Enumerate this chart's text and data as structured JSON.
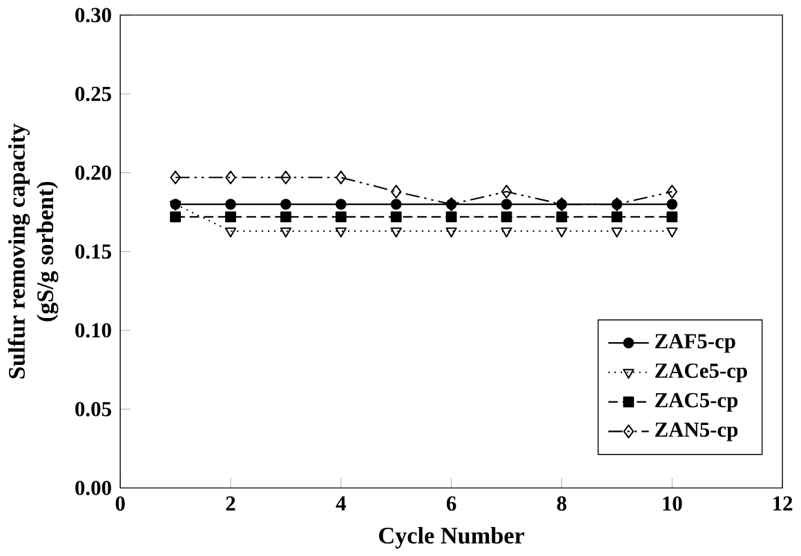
{
  "chart_data": {
    "type": "line",
    "xlabel": "Cycle Number",
    "ylabel": "Sulfur removing capacity\n(gS/g sorbent)",
    "x": [
      1,
      2,
      3,
      4,
      5,
      6,
      7,
      8,
      9,
      10
    ],
    "series": [
      {
        "name": "ZAF5-cp",
        "color": "#000000",
        "marker": "circle",
        "line_style": "solid",
        "values": [
          0.18,
          0.18,
          0.18,
          0.18,
          0.18,
          0.18,
          0.18,
          0.18,
          0.18,
          0.18
        ]
      },
      {
        "name": "ZACe5-cp",
        "color": "#000000",
        "marker": "triangle",
        "line_style": "dotted",
        "values": [
          0.18,
          0.163,
          0.163,
          0.163,
          0.163,
          0.163,
          0.163,
          0.163,
          0.163,
          0.163
        ]
      },
      {
        "name": "ZAC5-cp",
        "color": "#000000",
        "marker": "square",
        "line_style": "dashed",
        "values": [
          0.172,
          0.172,
          0.172,
          0.172,
          0.172,
          0.172,
          0.172,
          0.172,
          0.172,
          0.172
        ]
      },
      {
        "name": "ZAN5-cp",
        "color": "#000000",
        "marker": "diamond",
        "line_style": "dashdotdotted",
        "values": [
          0.197,
          0.197,
          0.197,
          0.197,
          0.188,
          0.18,
          0.188,
          0.18,
          0.18,
          0.188
        ]
      }
    ],
    "xlim": [
      0,
      12
    ],
    "xticks": [
      0,
      2,
      4,
      6,
      8,
      10,
      12
    ],
    "ylim": [
      0,
      0.3
    ],
    "yticks": [
      {
        "value": 0,
        "label": "0.00"
      },
      {
        "value": 0.05,
        "label": "0.05"
      },
      {
        "value": 0.1,
        "label": "0.10"
      },
      {
        "value": 0.15,
        "label": "0.15"
      },
      {
        "value": 0.2,
        "label": "0.20"
      },
      {
        "value": 0.25,
        "label": "0.25"
      },
      {
        "value": 0.3,
        "label": "0.30"
      }
    ],
    "legend": "right",
    "grid": false
  }
}
